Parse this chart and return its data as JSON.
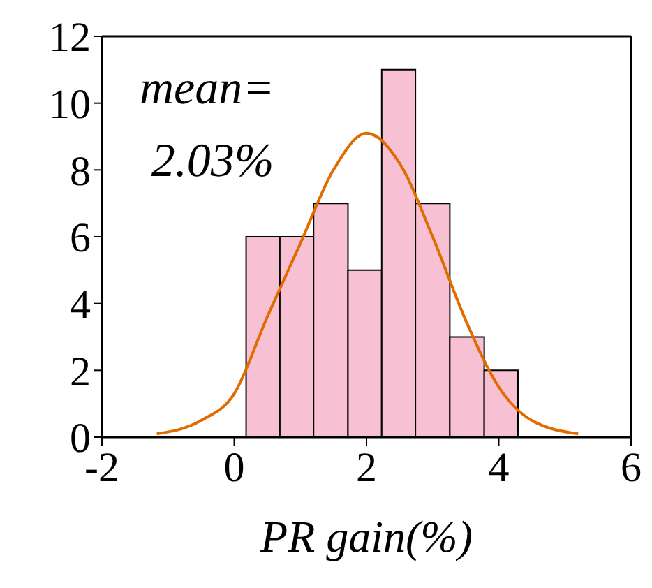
{
  "chart_data": {
    "type": "histogram",
    "bins": [
      0.18,
      0.69,
      1.2,
      1.72,
      2.23,
      2.74,
      3.26,
      3.78,
      4.29
    ],
    "values": [
      6,
      6,
      7,
      5,
      11,
      7,
      3,
      2
    ],
    "color": "#f8c0d3",
    "xlabel": "PR gain(%)",
    "xlim": [
      -2,
      6
    ],
    "xticks": [
      -2,
      0,
      2,
      4,
      6
    ],
    "ylim": [
      0,
      12
    ],
    "yticks": [
      0,
      2,
      4,
      6,
      8,
      10,
      12
    ],
    "annotations": [
      "mean= 2.03%"
    ],
    "series": [
      {
        "type": "line",
        "color": "#e06c00",
        "x": [
          -1.17,
          -0.5,
          0,
          0.5,
          1,
          1.5,
          2,
          2.5,
          3,
          3.5,
          4,
          4.5,
          5.2
        ],
        "values": [
          0.1,
          0.5,
          1.3,
          3.6,
          5.8,
          8.0,
          9.1,
          8.2,
          6.0,
          3.5,
          1.5,
          0.5,
          0.1
        ]
      }
    ]
  }
}
